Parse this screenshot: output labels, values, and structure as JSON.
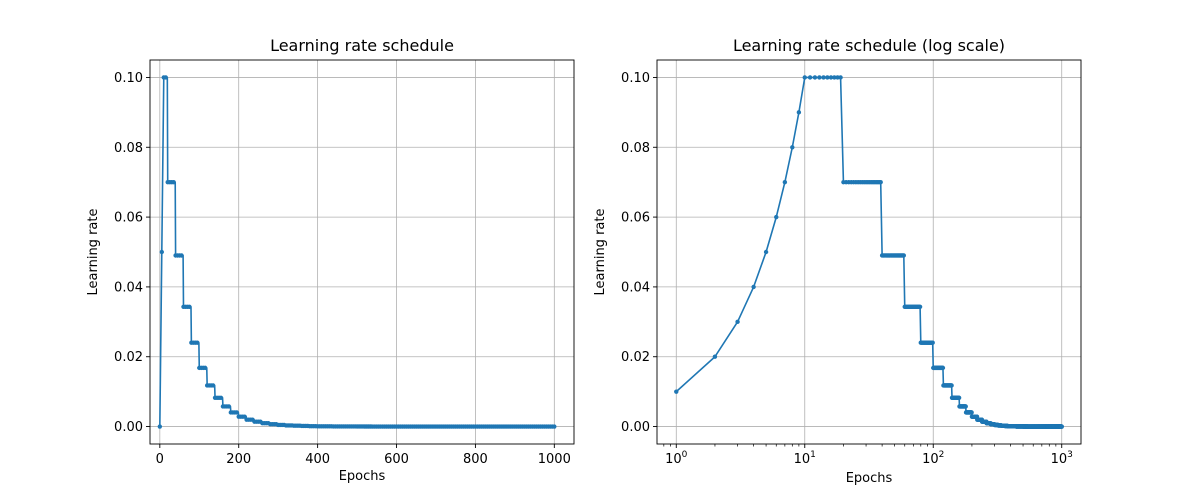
{
  "chart_data": [
    {
      "type": "line",
      "title": "Learning rate schedule",
      "xlabel": "Epochs",
      "ylabel": "Learning rate",
      "xscale": "linear",
      "xlim": [
        -24.9,
        1049.9
      ],
      "ylim": [
        -0.005,
        0.105
      ],
      "grid": true,
      "xticks": [
        0,
        200,
        400,
        600,
        800,
        1000
      ],
      "xtick_labels": [
        "0",
        "200",
        "400",
        "600",
        "800",
        "1000"
      ],
      "yticks": [
        0.0,
        0.02,
        0.04,
        0.06,
        0.08,
        0.1
      ],
      "ytick_labels": [
        "0.00",
        "0.02",
        "0.04",
        "0.06",
        "0.08",
        "0.10"
      ],
      "series_color": "#1f77b4",
      "schedule": {
        "epochs": [
          0,
          1000
        ],
        "epoch_step": 1,
        "marker_every": 5,
        "warmup_epochs": 10,
        "warmup_start": 0.0,
        "peak": 0.1,
        "plateau_until_epoch": 20,
        "decay_factor": 0.7,
        "decay_interval_epochs": 20
      }
    },
    {
      "type": "line",
      "title": "Learning rate schedule (log scale)",
      "xlabel": "Epochs",
      "ylabel": "Learning rate",
      "xscale": "log",
      "xlim": [
        0.7079,
        1412.5
      ],
      "ylim": [
        -0.005,
        0.105
      ],
      "grid": true,
      "xticks": [
        1,
        10,
        100,
        1000
      ],
      "xtick_labels": [
        {
          "base": "10",
          "exp": "0"
        },
        {
          "base": "10",
          "exp": "1"
        },
        {
          "base": "10",
          "exp": "2"
        },
        {
          "base": "10",
          "exp": "3"
        }
      ],
      "yticks": [
        0.0,
        0.02,
        0.04,
        0.06,
        0.08,
        0.1
      ],
      "ytick_labels": [
        "0.00",
        "0.02",
        "0.04",
        "0.06",
        "0.08",
        "0.10"
      ],
      "series_color": "#1f77b4",
      "schedule": {
        "epochs": [
          1,
          1000
        ],
        "epoch_step": 1,
        "marker_every": 1,
        "warmup_epochs": 10,
        "warmup_start": 0.0,
        "peak": 0.1,
        "plateau_until_epoch": 20,
        "decay_factor": 0.7,
        "decay_interval_epochs": 20
      }
    }
  ]
}
